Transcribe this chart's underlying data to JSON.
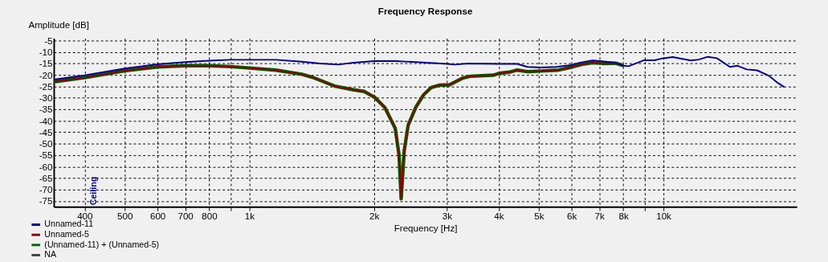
{
  "chart_data": {
    "type": "line",
    "title": "Frequency Response",
    "xlabel": "Frequency [Hz]",
    "ylabel": "Amplitude [dB]",
    "log": "x",
    "grid": true,
    "legend": "bottom left",
    "line_style": "solid",
    "marker": "none",
    "xlim": [
      337,
      21000
    ],
    "ylim": [
      -77.5,
      -4
    ],
    "xticks": [
      400,
      500,
      600,
      700,
      800,
      {
        "value": 900,
        "label": null
      },
      {
        "value": 1000,
        "label": "1k"
      },
      {
        "value": 2000,
        "label": "2k"
      },
      {
        "value": 3000,
        "label": "3k"
      },
      {
        "value": 4000,
        "label": "4k"
      },
      {
        "value": 5000,
        "label": "5k"
      },
      {
        "value": 6000,
        "label": "6k"
      },
      {
        "value": 7000,
        "label": "7k"
      },
      {
        "value": 8000,
        "label": "8k"
      },
      {
        "value": 9000,
        "label": null
      },
      {
        "value": 10000,
        "label": "10k"
      }
    ],
    "yticks": [
      -5,
      -10,
      -15,
      -20,
      -25,
      -30,
      -35,
      -40,
      -45,
      -50,
      -55,
      -60,
      -65,
      -70,
      -75
    ],
    "annotations": [
      "Ceiling"
    ],
    "series": [
      {
        "name": "Unnamed-11",
        "color": "#00008b",
        "x": [
          337,
          400,
          500,
          600,
          700,
          800,
          900,
          1000,
          1158,
          1338,
          1480,
          1640,
          1786,
          2005,
          2250,
          2525,
          3003,
          3135,
          3370,
          4007,
          4433,
          4696,
          5047,
          5504,
          6000,
          6266,
          6735,
          7035,
          7670,
          8008,
          8241,
          8986,
          9522,
          9943,
          10530,
          11650,
          12170,
          12800,
          13460,
          14260,
          14470,
          15110,
          15890,
          16830,
          17960,
          18890,
          19590
        ],
        "values": [
          -22,
          -20.2,
          -17.2,
          -15.4,
          -14.4,
          -13.8,
          -13.4,
          -13.4,
          -13.4,
          -14.2,
          -15,
          -15.5,
          -14.7,
          -14,
          -14,
          -14.4,
          -15.2,
          -15.5,
          -15,
          -15.2,
          -15.2,
          -16.5,
          -16.8,
          -16.5,
          -15.7,
          -14.7,
          -13.7,
          -14,
          -14.7,
          -16,
          -16.2,
          -13.6,
          -13.6,
          -12.8,
          -12.2,
          -13.7,
          -13.3,
          -12.1,
          -12.7,
          -15.7,
          -16.5,
          -16,
          -17.6,
          -18,
          -20.3,
          -23.5,
          -25.3
        ]
      },
      {
        "name": "Unnamed-5",
        "color": "#8b0000",
        "x": [
          337,
          400,
          500,
          600,
          700,
          800,
          900,
          1000,
          1158,
          1338,
          1418,
          1615,
          1786,
          1892,
          2005,
          2124,
          2250,
          2299,
          2326,
          2366,
          2418,
          2525,
          2637,
          2750,
          2874,
          3045,
          3273,
          3420,
          3891,
          4007,
          4244,
          4433,
          4696,
          5047,
          5582,
          6000,
          6356,
          6735,
          7130,
          7670,
          8008
        ],
        "values": [
          -23,
          -21.2,
          -18.2,
          -16.5,
          -16,
          -16,
          -16.4,
          -17,
          -17.9,
          -19.7,
          -21,
          -25,
          -26.5,
          -27.2,
          -29.7,
          -34.2,
          -43.2,
          -55,
          -74,
          -53,
          -42,
          -34,
          -28.6,
          -25.5,
          -24.5,
          -24.3,
          -21.4,
          -20.6,
          -20.1,
          -19.3,
          -18.8,
          -17.9,
          -18.6,
          -18.3,
          -17.9,
          -16.6,
          -15.4,
          -14.7,
          -15,
          -14.9,
          -16
        ]
      },
      {
        "name": "(Unnamed-11) + (Unnamed-5)",
        "color": "#006400",
        "x": [
          337,
          400,
          500,
          600,
          700,
          800,
          900,
          1000,
          1158,
          1338,
          1418,
          1615,
          1786,
          1892,
          2005,
          2124,
          2250,
          2299,
          2326,
          2366,
          2418,
          2525,
          2637,
          2750,
          2874,
          3045,
          3273,
          3420,
          3891,
          4007,
          4244,
          4433,
          4696,
          5047,
          5582,
          6000,
          6356,
          6735,
          7130,
          7670,
          8008
        ],
        "values": [
          -23,
          -21.2,
          -18.2,
          -16.5,
          -16,
          -16,
          -16.4,
          -17,
          -17.9,
          -19.7,
          -21,
          -25,
          -26.5,
          -27.2,
          -29.7,
          -34.2,
          -43.2,
          -55,
          -74,
          -53,
          -42,
          -34,
          -28.6,
          -25.5,
          -24.5,
          -24.3,
          -21.4,
          -20.6,
          -20.1,
          -19.3,
          -18.8,
          -17.9,
          -18.6,
          -18.3,
          -17.9,
          -16.6,
          -15.4,
          -14.7,
          -15,
          -14.9,
          -16
        ]
      },
      {
        "name": "NA",
        "color": "#404040"
      }
    ]
  }
}
